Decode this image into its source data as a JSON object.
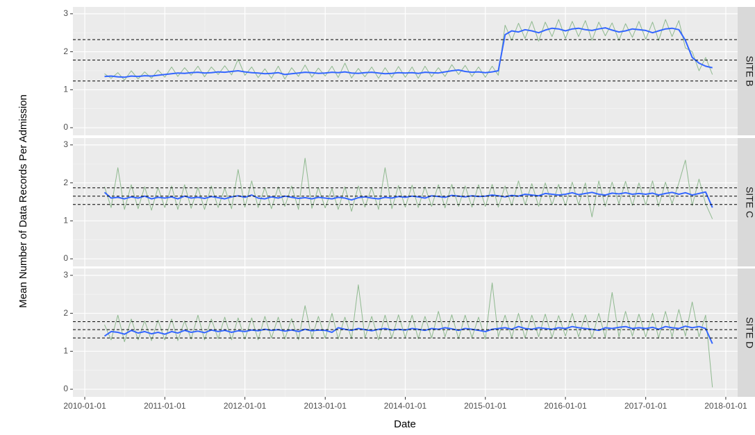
{
  "chart_data": {
    "type": "line",
    "xlabel": "Date",
    "ylabel": "Mean Number of Data Records Per Admission",
    "xlim": [
      "2009-11-08",
      "2018-02-24"
    ],
    "xticks": [
      "2010-01-01",
      "2011-01-01",
      "2012-01-01",
      "2013-01-01",
      "2014-01-01",
      "2015-01-01",
      "2016-01-01",
      "2017-01-01",
      "2018-01-01"
    ],
    "grid": true,
    "x": [
      "2010-04-01",
      "2010-05-01",
      "2010-06-01",
      "2010-07-01",
      "2010-08-01",
      "2010-09-01",
      "2010-10-01",
      "2010-11-01",
      "2010-12-01",
      "2011-01-01",
      "2011-02-01",
      "2011-03-01",
      "2011-04-01",
      "2011-05-01",
      "2011-06-01",
      "2011-07-01",
      "2011-08-01",
      "2011-09-01",
      "2011-10-01",
      "2011-11-01",
      "2011-12-01",
      "2012-01-01",
      "2012-02-01",
      "2012-03-01",
      "2012-04-01",
      "2012-05-01",
      "2012-06-01",
      "2012-07-01",
      "2012-08-01",
      "2012-09-01",
      "2012-10-01",
      "2012-11-01",
      "2012-12-01",
      "2013-01-01",
      "2013-02-01",
      "2013-03-01",
      "2013-04-01",
      "2013-05-01",
      "2013-06-01",
      "2013-07-01",
      "2013-08-01",
      "2013-09-01",
      "2013-10-01",
      "2013-11-01",
      "2013-12-01",
      "2014-01-01",
      "2014-02-01",
      "2014-03-01",
      "2014-04-01",
      "2014-05-01",
      "2014-06-01",
      "2014-07-01",
      "2014-08-01",
      "2014-09-01",
      "2014-10-01",
      "2014-11-01",
      "2014-12-01",
      "2015-01-01",
      "2015-02-01",
      "2015-03-01",
      "2015-04-01",
      "2015-05-01",
      "2015-06-01",
      "2015-07-01",
      "2015-08-01",
      "2015-09-01",
      "2015-10-01",
      "2015-11-01",
      "2015-12-01",
      "2016-01-01",
      "2016-02-01",
      "2016-03-01",
      "2016-04-01",
      "2016-05-01",
      "2016-06-01",
      "2016-07-01",
      "2016-08-01",
      "2016-09-01",
      "2016-10-01",
      "2016-11-01",
      "2016-12-01",
      "2017-01-01",
      "2017-02-01",
      "2017-03-01",
      "2017-04-01",
      "2017-05-01",
      "2017-06-01",
      "2017-07-01",
      "2017-08-01",
      "2017-09-01",
      "2017-10-01",
      "2017-11-01"
    ],
    "panels": [
      {
        "facet": "SITE B",
        "ylim": [
          -0.2,
          3.18
        ],
        "yticks": [
          0,
          1,
          2,
          3
        ],
        "hlines": [
          1.23,
          1.78,
          2.32
        ],
        "series": [
          {
            "color": "#8fb98f",
            "values": [
              1.42,
              1.3,
              1.45,
              1.25,
              1.5,
              1.28,
              1.47,
              1.3,
              1.52,
              1.33,
              1.6,
              1.35,
              1.58,
              1.38,
              1.62,
              1.34,
              1.6,
              1.4,
              1.63,
              1.39,
              1.8,
              1.38,
              1.6,
              1.32,
              1.55,
              1.3,
              1.62,
              1.28,
              1.58,
              1.35,
              1.65,
              1.33,
              1.57,
              1.36,
              1.62,
              1.32,
              1.7,
              1.31,
              1.56,
              1.34,
              1.6,
              1.3,
              1.58,
              1.32,
              1.61,
              1.33,
              1.6,
              1.3,
              1.62,
              1.34,
              1.58,
              1.35,
              1.66,
              1.4,
              1.64,
              1.35,
              1.6,
              1.33,
              1.62,
              1.38,
              2.7,
              2.3,
              2.75,
              2.35,
              2.8,
              2.28,
              2.78,
              2.4,
              2.85,
              2.35,
              2.8,
              2.4,
              2.82,
              2.3,
              2.78,
              2.42,
              2.76,
              2.3,
              2.74,
              2.38,
              2.8,
              2.33,
              2.78,
              2.3,
              2.85,
              2.4,
              2.82,
              2.1,
              2.0,
              1.5,
              1.85,
              1.4
            ]
          },
          {
            "color": "#3366ff",
            "values": [
              1.35,
              1.36,
              1.34,
              1.33,
              1.36,
              1.35,
              1.37,
              1.36,
              1.38,
              1.4,
              1.42,
              1.44,
              1.43,
              1.45,
              1.46,
              1.44,
              1.45,
              1.47,
              1.46,
              1.48,
              1.5,
              1.47,
              1.45,
              1.44,
              1.42,
              1.43,
              1.45,
              1.4,
              1.42,
              1.44,
              1.46,
              1.45,
              1.43,
              1.44,
              1.46,
              1.45,
              1.47,
              1.44,
              1.43,
              1.45,
              1.46,
              1.44,
              1.42,
              1.43,
              1.45,
              1.44,
              1.45,
              1.43,
              1.46,
              1.45,
              1.44,
              1.47,
              1.5,
              1.52,
              1.48,
              1.46,
              1.47,
              1.45,
              1.47,
              1.5,
              2.45,
              2.55,
              2.52,
              2.58,
              2.55,
              2.5,
              2.57,
              2.62,
              2.6,
              2.55,
              2.6,
              2.62,
              2.58,
              2.56,
              2.6,
              2.63,
              2.57,
              2.52,
              2.55,
              2.6,
              2.58,
              2.56,
              2.5,
              2.55,
              2.6,
              2.62,
              2.58,
              2.3,
              1.85,
              1.7,
              1.62,
              1.58
            ]
          }
        ]
      },
      {
        "facet": "SITE C",
        "ylim": [
          -0.2,
          3.18
        ],
        "yticks": [
          0,
          1,
          2,
          3
        ],
        "hlines": [
          1.43,
          1.65,
          1.87
        ],
        "series": [
          {
            "color": "#8fb98f",
            "values": [
              1.9,
              1.35,
              2.4,
              1.3,
              1.95,
              1.32,
              1.9,
              1.28,
              1.88,
              1.35,
              1.92,
              1.3,
              1.95,
              1.33,
              1.88,
              1.3,
              1.92,
              1.35,
              1.86,
              1.32,
              2.35,
              1.36,
              2.05,
              1.35,
              1.88,
              1.32,
              1.9,
              1.38,
              1.92,
              1.3,
              2.65,
              1.33,
              1.88,
              1.34,
              1.85,
              1.3,
              1.9,
              1.25,
              1.92,
              1.36,
              1.88,
              1.3,
              2.4,
              1.32,
              1.93,
              1.36,
              1.94,
              1.35,
              1.9,
              1.38,
              1.95,
              1.34,
              1.96,
              1.38,
              1.92,
              1.36,
              1.95,
              1.38,
              1.96,
              1.36,
              1.92,
              1.4,
              2.05,
              1.42,
              1.98,
              1.38,
              2.0,
              1.42,
              1.96,
              1.4,
              2.02,
              1.42,
              2.0,
              1.1,
              2.05,
              1.38,
              2.02,
              1.45,
              2.04,
              1.4,
              2.0,
              1.42,
              2.05,
              1.38,
              2.02,
              1.45,
              2.0,
              2.6,
              1.4,
              2.1,
              1.45,
              1.05
            ]
          },
          {
            "color": "#3366ff",
            "values": [
              1.75,
              1.6,
              1.62,
              1.58,
              1.63,
              1.6,
              1.65,
              1.58,
              1.62,
              1.6,
              1.63,
              1.58,
              1.65,
              1.6,
              1.62,
              1.59,
              1.64,
              1.61,
              1.58,
              1.63,
              1.66,
              1.62,
              1.68,
              1.6,
              1.58,
              1.63,
              1.6,
              1.65,
              1.62,
              1.59,
              1.61,
              1.58,
              1.62,
              1.6,
              1.58,
              1.62,
              1.6,
              1.55,
              1.61,
              1.63,
              1.6,
              1.58,
              1.62,
              1.6,
              1.64,
              1.62,
              1.65,
              1.63,
              1.6,
              1.66,
              1.64,
              1.62,
              1.67,
              1.65,
              1.63,
              1.66,
              1.64,
              1.65,
              1.68,
              1.66,
              1.63,
              1.67,
              1.65,
              1.7,
              1.68,
              1.66,
              1.72,
              1.7,
              1.68,
              1.7,
              1.74,
              1.69,
              1.72,
              1.75,
              1.7,
              1.68,
              1.73,
              1.71,
              1.74,
              1.7,
              1.72,
              1.7,
              1.73,
              1.68,
              1.72,
              1.75,
              1.7,
              1.74,
              1.68,
              1.72,
              1.76,
              1.35
            ]
          }
        ]
      },
      {
        "facet": "SITE D",
        "ylim": [
          -0.2,
          3.18
        ],
        "yticks": [
          0,
          1,
          2,
          3
        ],
        "hlines": [
          1.35,
          1.57,
          1.78
        ],
        "series": [
          {
            "color": "#8fb98f",
            "values": [
              1.7,
              1.3,
              1.95,
              1.25,
              1.85,
              1.3,
              1.8,
              1.28,
              1.82,
              1.3,
              1.85,
              1.28,
              1.8,
              1.32,
              1.95,
              1.3,
              1.85,
              1.33,
              1.9,
              1.3,
              1.88,
              1.32,
              1.88,
              1.3,
              1.92,
              1.35,
              1.9,
              1.32,
              1.86,
              1.3,
              2.2,
              1.35,
              1.92,
              1.34,
              2.0,
              1.32,
              1.9,
              1.33,
              2.75,
              1.35,
              1.92,
              1.3,
              1.95,
              1.35,
              1.96,
              1.36,
              1.95,
              1.33,
              1.92,
              1.35,
              2.05,
              1.38,
              1.96,
              1.33,
              1.95,
              1.36,
              1.9,
              1.32,
              2.8,
              1.38,
              1.95,
              1.36,
              2.0,
              1.35,
              1.95,
              1.38,
              1.98,
              1.36,
              1.94,
              1.4,
              2.0,
              1.38,
              1.96,
              1.35,
              2.0,
              1.36,
              2.55,
              1.38,
              2.05,
              1.4,
              1.98,
              1.38,
              2.0,
              1.35,
              2.05,
              1.38,
              2.1,
              1.4,
              2.3,
              1.38,
              1.95,
              0.05
            ]
          },
          {
            "color": "#3366ff",
            "values": [
              1.4,
              1.52,
              1.5,
              1.45,
              1.55,
              1.48,
              1.52,
              1.46,
              1.5,
              1.45,
              1.52,
              1.48,
              1.55,
              1.5,
              1.53,
              1.49,
              1.56,
              1.52,
              1.55,
              1.5,
              1.54,
              1.52,
              1.56,
              1.54,
              1.58,
              1.55,
              1.57,
              1.53,
              1.56,
              1.52,
              1.58,
              1.54,
              1.56,
              1.55,
              1.5,
              1.62,
              1.58,
              1.55,
              1.6,
              1.57,
              1.54,
              1.58,
              1.6,
              1.56,
              1.58,
              1.56,
              1.6,
              1.58,
              1.55,
              1.6,
              1.58,
              1.62,
              1.59,
              1.55,
              1.6,
              1.58,
              1.55,
              1.52,
              1.58,
              1.6,
              1.62,
              1.58,
              1.65,
              1.6,
              1.58,
              1.62,
              1.6,
              1.58,
              1.62,
              1.6,
              1.65,
              1.62,
              1.6,
              1.58,
              1.55,
              1.62,
              1.6,
              1.63,
              1.65,
              1.6,
              1.62,
              1.6,
              1.63,
              1.58,
              1.65,
              1.62,
              1.6,
              1.66,
              1.62,
              1.65,
              1.6,
              1.2
            ]
          }
        ]
      }
    ]
  }
}
